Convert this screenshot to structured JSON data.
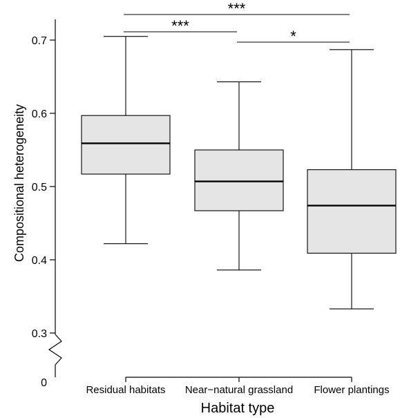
{
  "chart_data": {
    "type": "boxplot",
    "title": "",
    "xlabel": "Habitat type",
    "ylabel": "Compositional heterogeneity",
    "ylim": [
      0.3,
      0.72
    ],
    "broken_axis": true,
    "y_ticks": [
      {
        "value": 0.7,
        "label": "0.7"
      },
      {
        "value": 0.6,
        "label": "0.6"
      },
      {
        "value": 0.5,
        "label": "0.5"
      },
      {
        "value": 0.4,
        "label": "0.4"
      },
      {
        "value": 0.3,
        "label": "0.3"
      }
    ],
    "y_break_label": "0",
    "categories": [
      "Residual habitats",
      "Near−natural grassland",
      "Flower plantings"
    ],
    "boxes": [
      {
        "category": "Residual habitats",
        "whisker_low": 0.422,
        "q1": 0.517,
        "median": 0.559,
        "q3": 0.597,
        "whisker_high": 0.705
      },
      {
        "category": "Near−natural grassland",
        "whisker_low": 0.386,
        "q1": 0.467,
        "median": 0.507,
        "q3": 0.55,
        "whisker_high": 0.643
      },
      {
        "category": "Flower plantings",
        "whisker_low": 0.333,
        "q1": 0.409,
        "median": 0.474,
        "q3": 0.523,
        "whisker_high": 0.687
      }
    ],
    "significance": [
      {
        "from": 0,
        "to": 2,
        "label": "***"
      },
      {
        "from": 0,
        "to": 1,
        "label": "***"
      },
      {
        "from": 1,
        "to": 2,
        "label": "*"
      }
    ],
    "colors": {
      "box_fill": "#e5e5e5",
      "stroke": "#000000"
    },
    "grid": false,
    "legend": "none"
  }
}
